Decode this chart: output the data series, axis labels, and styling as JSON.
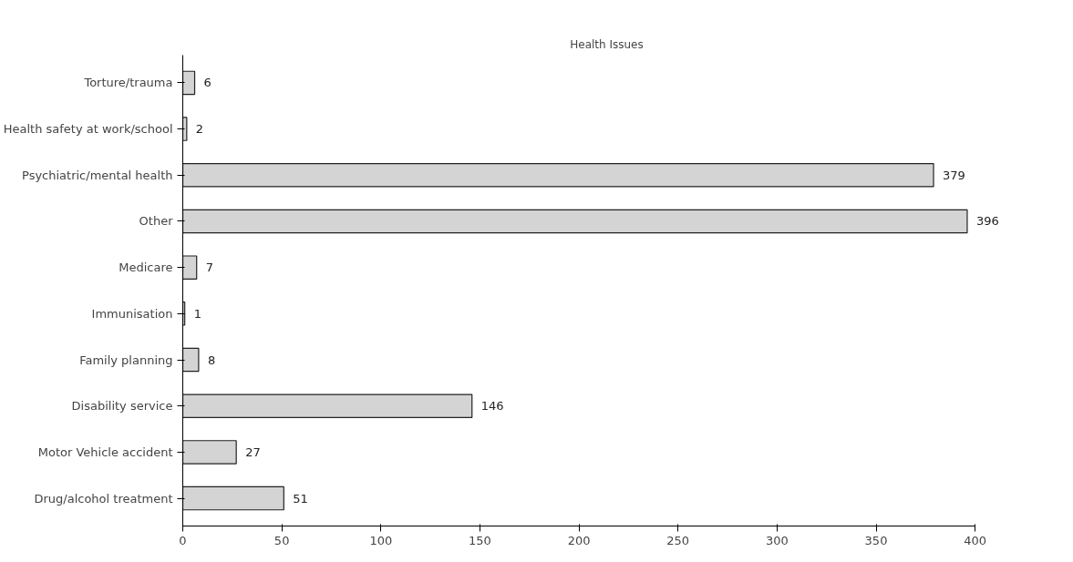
{
  "chart_data": {
    "type": "bar",
    "orientation": "horizontal",
    "title": "Health Issues",
    "categories": [
      "Torture/trauma",
      "Health safety at work/school",
      "Psychiatric/mental health",
      "Other",
      "Medicare",
      "Immunisation",
      "Family planning",
      "Disability service",
      "Motor Vehicle accident",
      "Drug/alcohol treatment"
    ],
    "values": [
      6,
      2,
      379,
      396,
      7,
      1,
      8,
      146,
      27,
      51
    ],
    "color": "#d4d4d4",
    "xlim": [
      0,
      400
    ],
    "xticks": [
      0,
      50,
      100,
      150,
      200,
      250,
      300,
      350,
      400
    ],
    "data_labels": true,
    "grid": false
  }
}
